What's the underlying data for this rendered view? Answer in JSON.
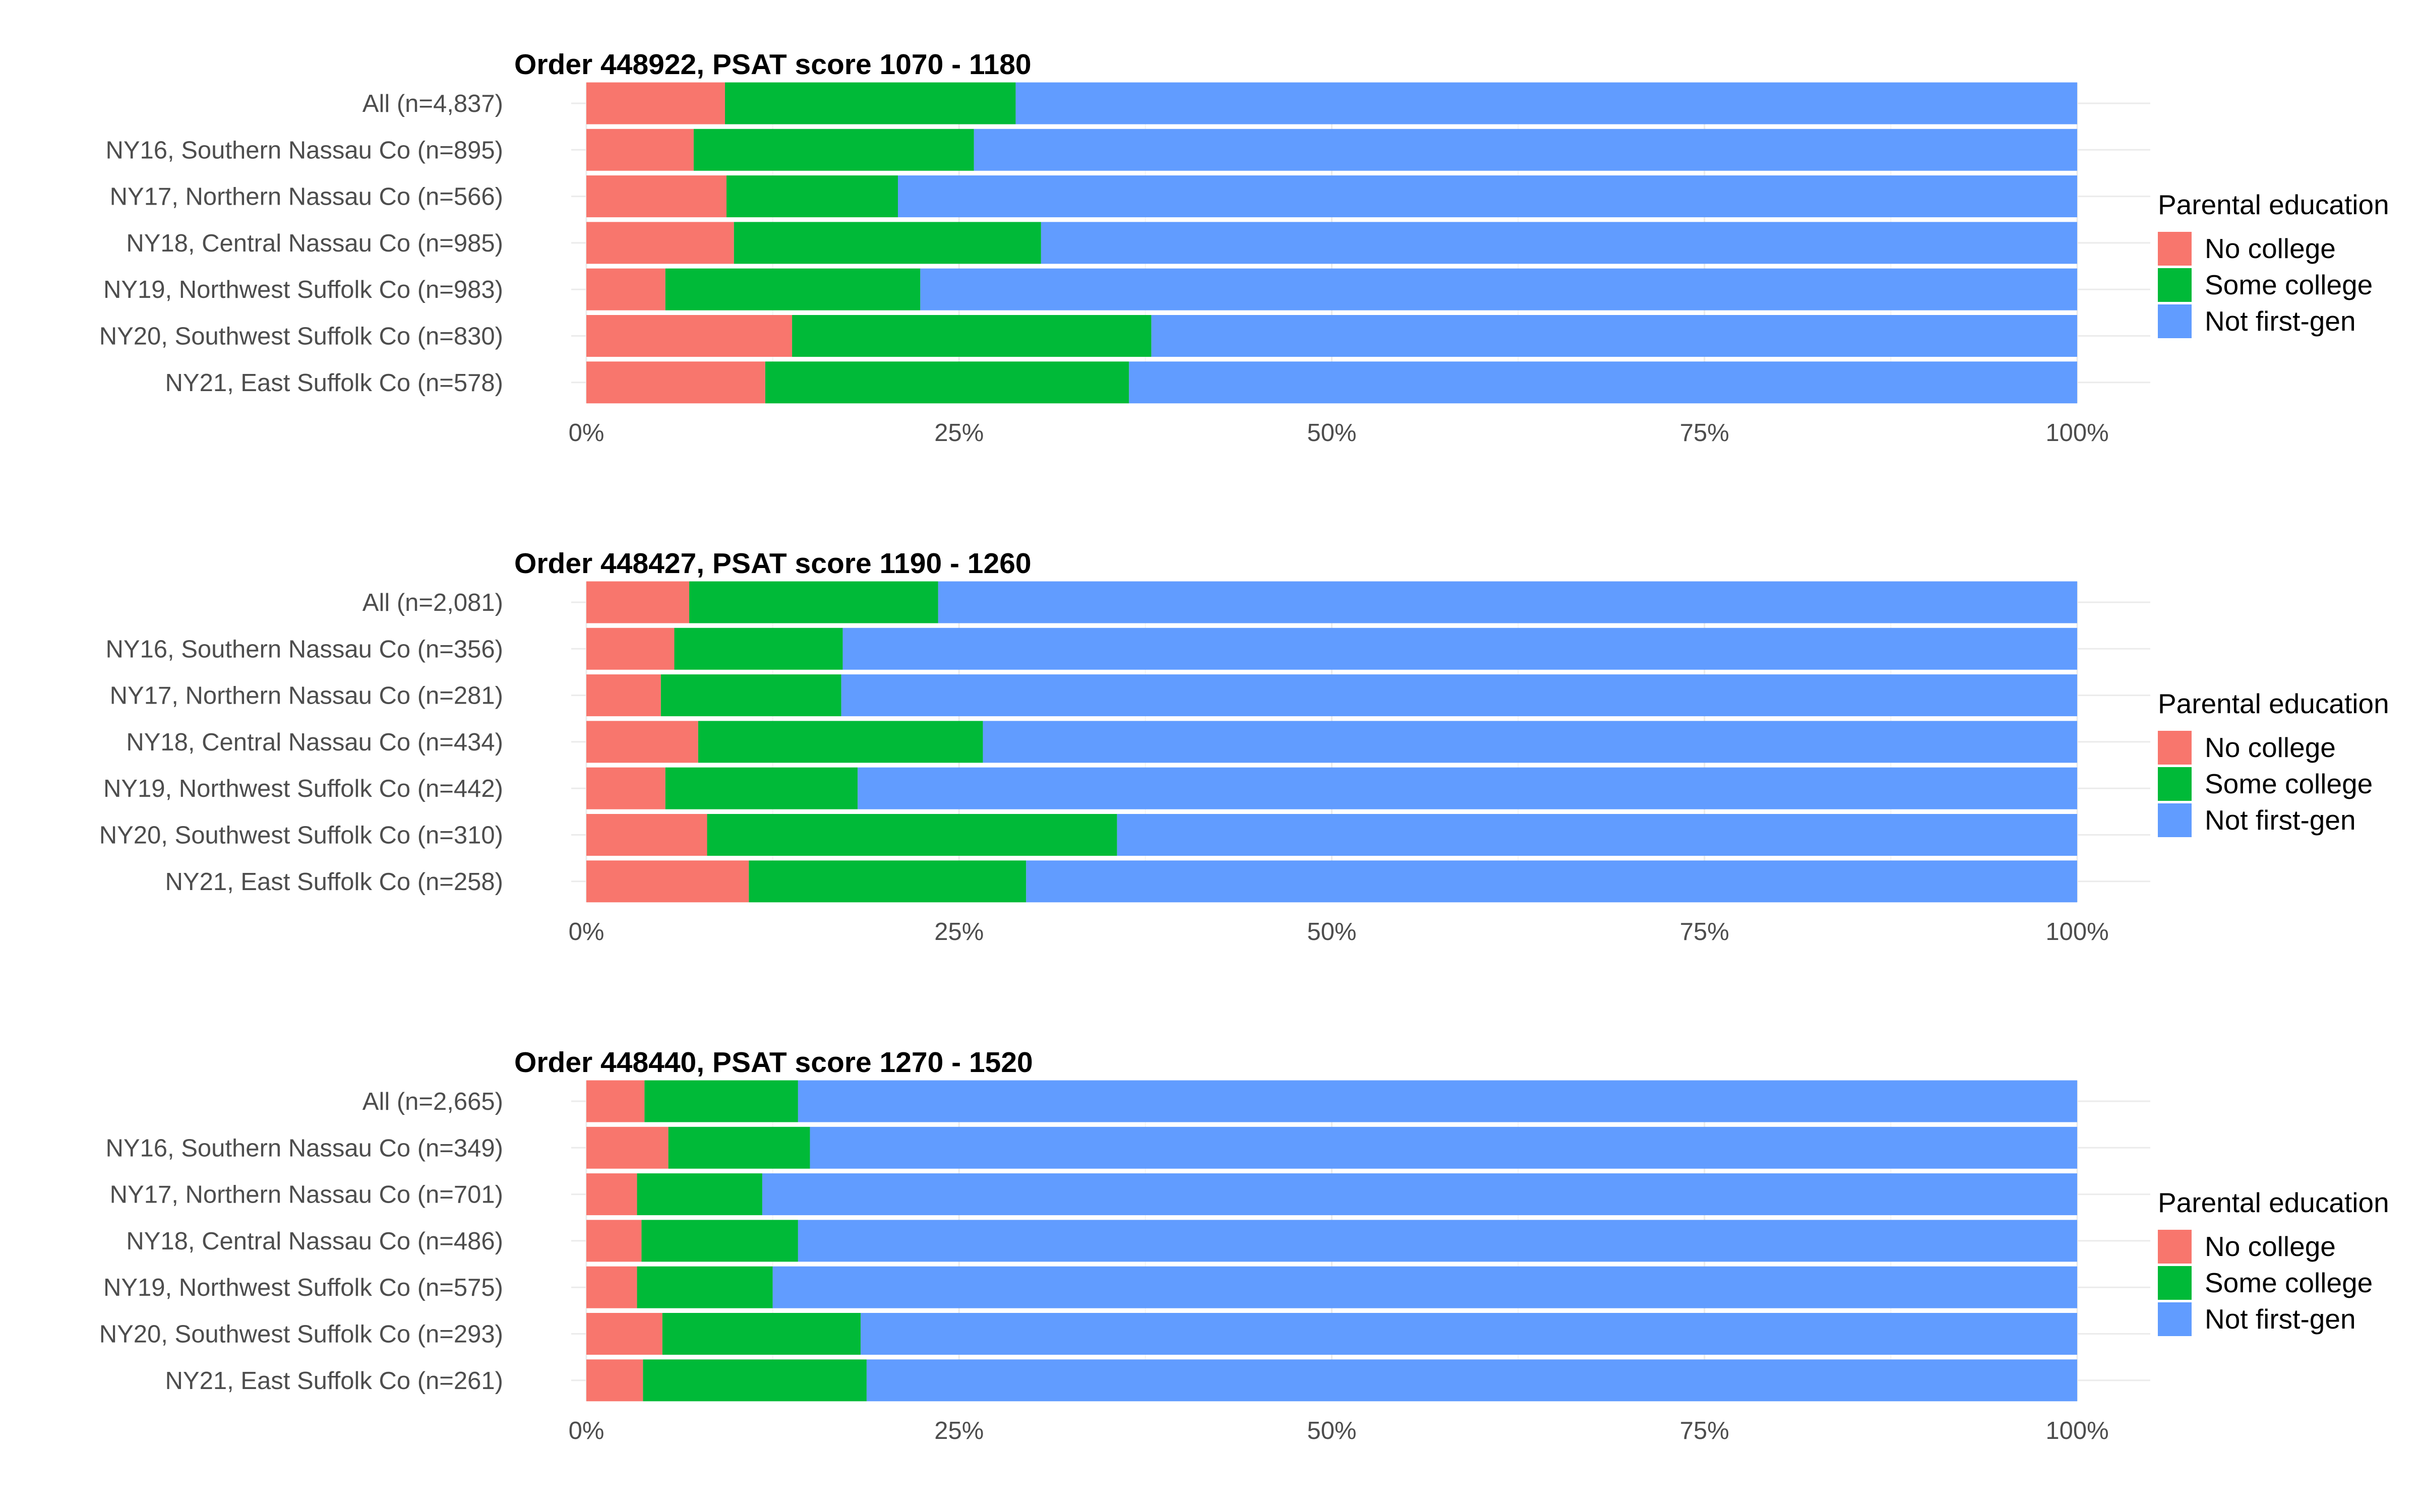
{
  "legend": {
    "title": "Parental education",
    "entries": [
      {
        "label": "No college",
        "color": "#F8766D"
      },
      {
        "label": "Some college",
        "color": "#00BA38"
      },
      {
        "label": "Not first-gen",
        "color": "#619CFF"
      }
    ]
  },
  "x_tick_labels": [
    "0%",
    "25%",
    "50%",
    "75%",
    "100%"
  ],
  "chart_data": [
    {
      "type": "bar",
      "orientation": "horizontal",
      "stacked": true,
      "title": "Order 448922, PSAT score 1070 - 1180",
      "xlim": [
        0,
        1
      ],
      "categories": [
        "All (n=4,837)",
        "NY16, Southern Nassau Co (n=895)",
        "NY17, Northern Nassau Co (n=566)",
        "NY18, Central Nassau Co (n=985)",
        "NY19, Northwest Suffolk Co (n=983)",
        "NY20, Southwest Suffolk Co (n=830)",
        "NY21, East Suffolk Co (n=578)"
      ],
      "series": [
        {
          "name": "No college",
          "values": [
            0.093,
            0.072,
            0.094,
            0.099,
            0.053,
            0.138,
            0.12
          ]
        },
        {
          "name": "Some college",
          "values": [
            0.195,
            0.188,
            0.115,
            0.206,
            0.171,
            0.241,
            0.244
          ]
        },
        {
          "name": "Not first-gen",
          "values": [
            0.712,
            0.74,
            0.791,
            0.695,
            0.776,
            0.621,
            0.636
          ]
        }
      ]
    },
    {
      "type": "bar",
      "orientation": "horizontal",
      "stacked": true,
      "title": "Order 448427, PSAT score 1190 - 1260",
      "xlim": [
        0,
        1
      ],
      "categories": [
        "All (n=2,081)",
        "NY16, Southern Nassau Co (n=356)",
        "NY17, Northern Nassau Co (n=281)",
        "NY18, Central Nassau Co (n=434)",
        "NY19, Northwest Suffolk Co (n=442)",
        "NY20, Southwest Suffolk Co (n=310)",
        "NY21, East Suffolk Co (n=258)"
      ],
      "series": [
        {
          "name": "No college",
          "values": [
            0.069,
            0.059,
            0.05,
            0.075,
            0.053,
            0.081,
            0.109
          ]
        },
        {
          "name": "Some college",
          "values": [
            0.167,
            0.113,
            0.121,
            0.191,
            0.129,
            0.275,
            0.186
          ]
        },
        {
          "name": "Not first-gen",
          "values": [
            0.764,
            0.828,
            0.829,
            0.734,
            0.818,
            0.644,
            0.705
          ]
        }
      ]
    },
    {
      "type": "bar",
      "orientation": "horizontal",
      "stacked": true,
      "title": "Order 448440, PSAT score 1270 - 1520",
      "xlim": [
        0,
        1
      ],
      "categories": [
        "All (n=2,665)",
        "NY16, Southern Nassau Co (n=349)",
        "NY17, Northern Nassau Co (n=701)",
        "NY18, Central Nassau Co (n=486)",
        "NY19, Northwest Suffolk Co (n=575)",
        "NY20, Southwest Suffolk Co (n=293)",
        "NY21, East Suffolk Co (n=261)"
      ],
      "series": [
        {
          "name": "No college",
          "values": [
            0.039,
            0.055,
            0.034,
            0.037,
            0.034,
            0.051,
            0.038
          ]
        },
        {
          "name": "Some college",
          "values": [
            0.103,
            0.095,
            0.084,
            0.105,
            0.091,
            0.133,
            0.15
          ]
        },
        {
          "name": "Not first-gen",
          "values": [
            0.858,
            0.85,
            0.882,
            0.858,
            0.875,
            0.816,
            0.812
          ]
        }
      ]
    }
  ]
}
